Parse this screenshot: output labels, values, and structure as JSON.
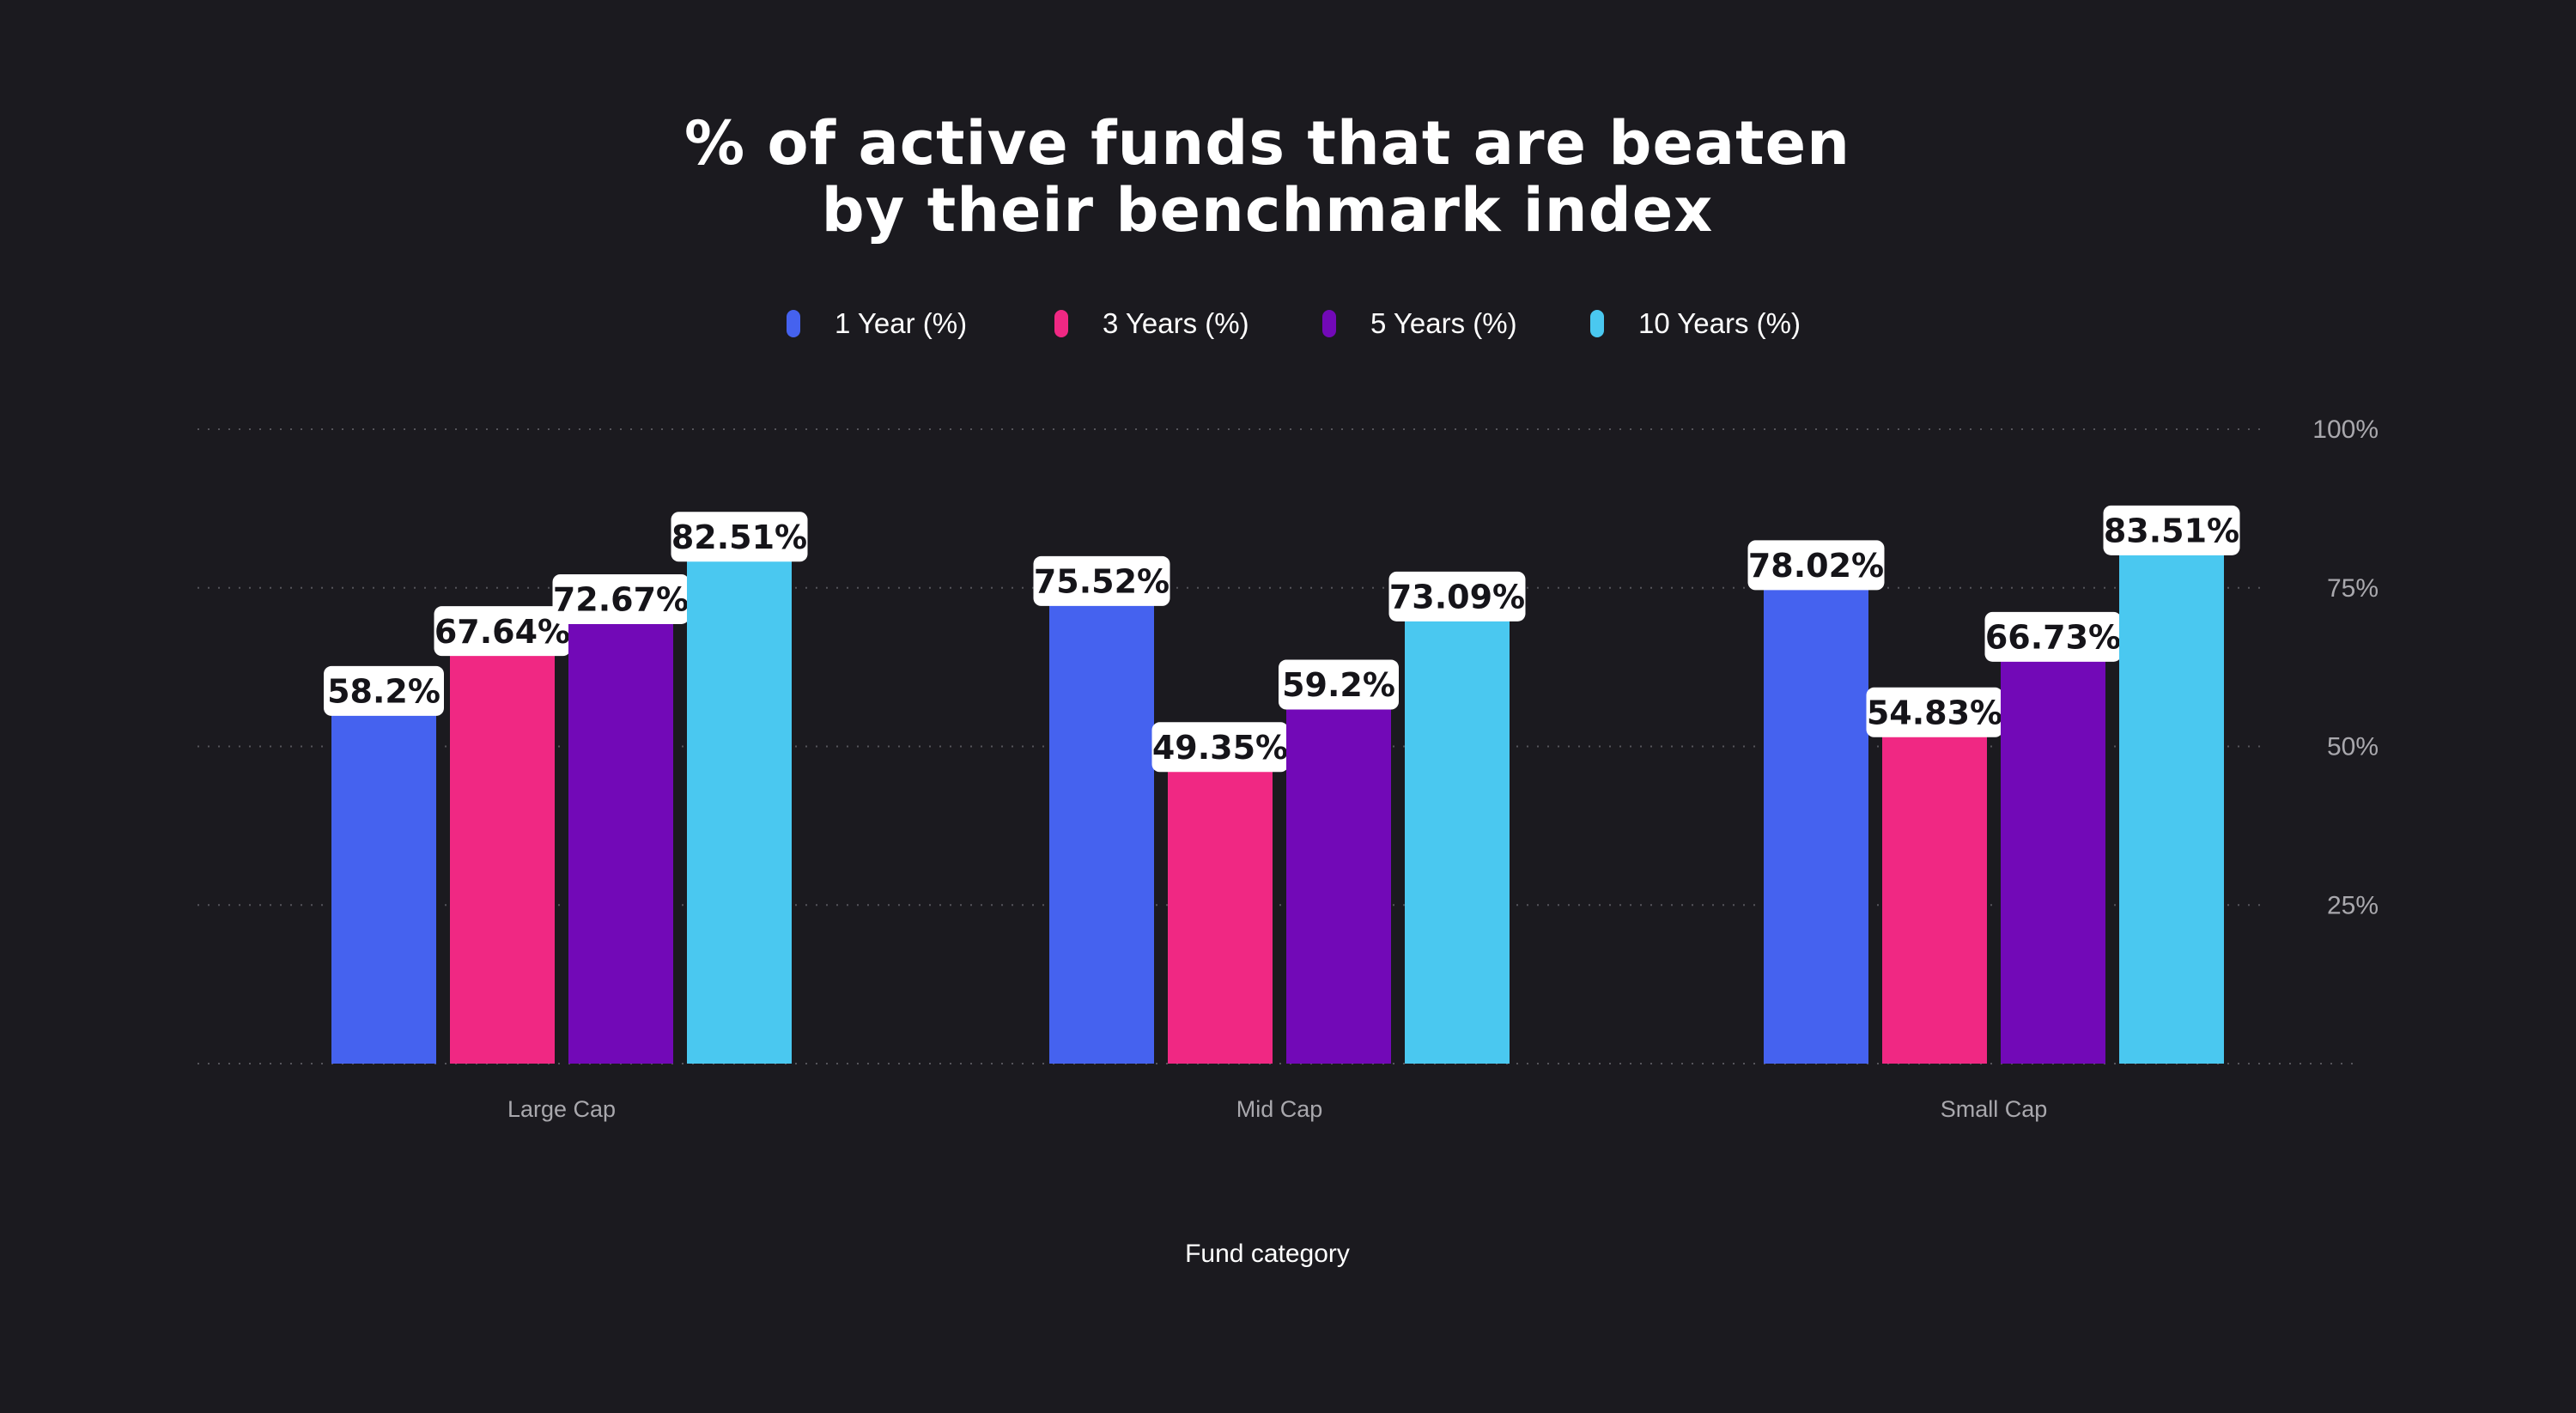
{
  "chart_data": {
    "type": "bar",
    "title": "% of active funds that are beaten by their benchmark index",
    "title_lines": [
      "% of active funds that are beaten",
      "by their benchmark index"
    ],
    "xlabel": "Fund category",
    "ylabel": "",
    "categories": [
      "Large Cap",
      "Mid Cap",
      "Small Cap"
    ],
    "series": [
      {
        "name": "1 Year (%)",
        "color": "#4562ef",
        "values": [
          58.2,
          75.52,
          78.02
        ],
        "labels": [
          "58.2%",
          "75.52%",
          "78.02%"
        ]
      },
      {
        "name": "3 Years (%)",
        "color": "#f02883",
        "values": [
          67.64,
          49.35,
          54.83
        ],
        "labels": [
          "67.64%",
          "49.35%",
          "54.83%"
        ]
      },
      {
        "name": "5 Years (%)",
        "color": "#7209b7",
        "values": [
          72.67,
          59.2,
          66.73
        ],
        "labels": [
          "72.67%",
          "59.2%",
          "66.73%"
        ]
      },
      {
        "name": "10 Years (%)",
        "color": "#4ac8f0",
        "values": [
          82.51,
          73.09,
          83.51
        ],
        "labels": [
          "82.51%",
          "73.09%",
          "83.51%"
        ]
      }
    ],
    "ylim": [
      0,
      100
    ],
    "yticks": [
      25,
      50,
      75,
      100
    ],
    "ytick_labels": [
      "25%",
      "50%",
      "75%",
      "100%"
    ],
    "grid": true,
    "legend_position": "top-center",
    "axis_position": "right"
  }
}
